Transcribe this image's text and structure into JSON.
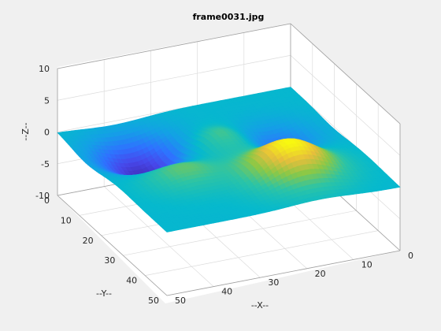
{
  "chart_data": {
    "type": "surface",
    "title": "frame0031.jpg",
    "xlabel": "--X--",
    "ylabel": "--Y--",
    "zlabel": "--Z--",
    "xlim": [
      0,
      50
    ],
    "ylim": [
      0,
      50
    ],
    "zlim": [
      -10,
      10
    ],
    "x_ticks": [
      0,
      10,
      20,
      30,
      40,
      50
    ],
    "y_ticks": [
      0,
      10,
      20,
      30,
      40,
      50
    ],
    "z_ticks": [
      -10,
      -5,
      0,
      5,
      10
    ],
    "grid": true,
    "colormap": "parula",
    "surface_features": [
      {
        "kind": "trough",
        "x": 38,
        "y": 13,
        "z": -4.5
      },
      {
        "kind": "trough",
        "x": 11,
        "y": 19,
        "z": -2.5
      },
      {
        "kind": "peak",
        "x": 23,
        "y": 17,
        "z": 2.0
      },
      {
        "kind": "peak",
        "x": 37,
        "y": 29,
        "z": 2.2
      },
      {
        "kind": "peak",
        "x": 17,
        "y": 36,
        "z": 5.2
      }
    ]
  },
  "colors": {
    "figure_bg": "#f0f0f0",
    "axes_bg": "#ffffff",
    "grid": "#dcdcdc",
    "box": "#a0a0a0"
  }
}
